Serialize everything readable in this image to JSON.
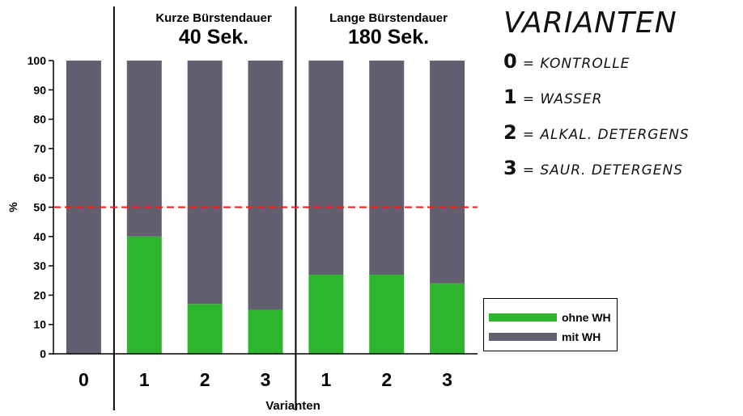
{
  "chart_data": {
    "type": "bar",
    "stacked": true,
    "categories": [
      "0",
      "1",
      "2",
      "3",
      "1",
      "2",
      "3"
    ],
    "series": [
      {
        "name": "ohne WH",
        "color": "#2db52d",
        "values": [
          0,
          40,
          17,
          15,
          27,
          27,
          24
        ]
      },
      {
        "name": "mit WH",
        "color": "#615f70",
        "values": [
          100,
          60,
          83,
          85,
          73,
          73,
          76
        ]
      }
    ],
    "ylabel": "%",
    "xlabel": "Varianten",
    "ylim": [
      0,
      100
    ],
    "yticks": [
      0,
      10,
      20,
      30,
      40,
      50,
      60,
      70,
      80,
      90,
      100
    ],
    "reference_line": {
      "y": 50,
      "color": "#ee1c1c",
      "style": "dashed"
    },
    "groups": [
      {
        "title": "Kurze Bürstendauer",
        "subtitle": "40 Sek."
      },
      {
        "title": "Lange Bürstendauer",
        "subtitle": "180 Sek."
      }
    ],
    "legend_position": "bottom-right"
  },
  "variants_panel": {
    "title": "VARIANTEN",
    "items": [
      {
        "num": "0",
        "text": "= KONTROLLE"
      },
      {
        "num": "1",
        "text": "= WASSER"
      },
      {
        "num": "2",
        "text": "= ALKAL. DETERGENS"
      },
      {
        "num": "3",
        "text": "= SAUR. DETERGENS"
      }
    ]
  }
}
